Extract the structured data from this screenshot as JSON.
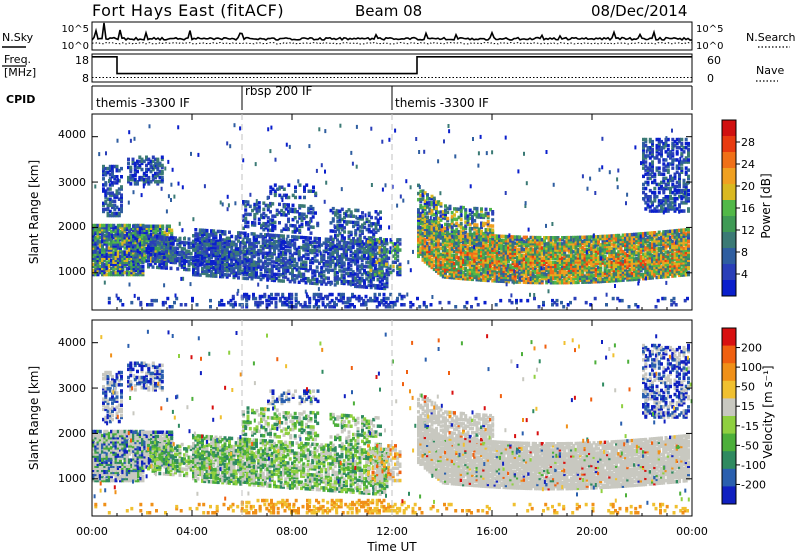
{
  "header": {
    "title": "Fort Hays East (fitACF)",
    "beam": "Beam 08",
    "date": "08/Dec/2014"
  },
  "chart_data": [
    {
      "type": "line",
      "name": "noise",
      "left_label": "N.Sky",
      "right_label": "N.Search",
      "ytick_labels_left": [
        "10^5",
        "10^0"
      ],
      "ytick_labels_right": [
        "10^5",
        "10^0"
      ]
    },
    {
      "type": "line",
      "name": "frequency",
      "left_label_line1": "Freq.",
      "left_label_line2": "[MHz]",
      "right_label": "Nave",
      "ytick_labels_left": [
        "18",
        "8"
      ],
      "ytick_labels_right": [
        "60",
        "0"
      ],
      "freq_steps": [
        [
          0,
          17
        ],
        [
          1.0,
          11
        ],
        [
          13.0,
          17
        ],
        [
          24,
          17
        ]
      ],
      "nave_level": 0.4
    },
    {
      "type": "table",
      "name": "cpid",
      "label": "CPID",
      "segments": [
        {
          "start": 0,
          "label": "themis -3300 IF"
        },
        {
          "start": 6,
          "label": "rbsp 200 IF"
        },
        {
          "start": 12,
          "label": "themis -3300 IF"
        }
      ]
    },
    {
      "type": "heatmap",
      "name": "power",
      "ylabel": "Slant Range [km]",
      "ytick_labels": [
        "1000",
        "2000",
        "3000",
        "4000"
      ],
      "yticks": [
        1000,
        2000,
        3000,
        4000
      ],
      "ylim": [
        180,
        4500
      ],
      "xlim": [
        0,
        24
      ],
      "colorbar_label": "Power [dB]",
      "colorbar_ticks": [
        "28",
        "24",
        "20",
        "16",
        "12",
        "8",
        "4"
      ],
      "colors": [
        "#0a1fcc",
        "#2a3fb8",
        "#2f5ea0",
        "#3b7a75",
        "#3f9a55",
        "#52b848",
        "#d9b820",
        "#f0a020",
        "#f07018",
        "#e83a10",
        "#d01010"
      ]
    },
    {
      "type": "heatmap",
      "name": "velocity",
      "ylabel": "Slant Range [km]",
      "ytick_labels": [
        "1000",
        "2000",
        "3000",
        "4000"
      ],
      "yticks": [
        1000,
        2000,
        3000,
        4000
      ],
      "ylim": [
        180,
        4500
      ],
      "xlim": [
        0,
        24
      ],
      "colorbar_label": "Velocity [m s⁻¹]",
      "colorbar_ticks": [
        "200",
        "100",
        "50",
        "15",
        "-15",
        "-50",
        "-100",
        "-200"
      ],
      "colors": [
        "#1020c0",
        "#2a5fae",
        "#2f8a60",
        "#4caf3a",
        "#8fd040",
        "#c8c8c0",
        "#f0c030",
        "#f09018",
        "#f06010",
        "#d81010"
      ]
    }
  ],
  "xaxis": {
    "xlabel": "Time UT",
    "ticks": [
      0,
      4,
      8,
      12,
      16,
      20,
      24
    ],
    "tick_labels": [
      "00:00",
      "04:00",
      "08:00",
      "12:00",
      "16:00",
      "20:00",
      "00:00"
    ]
  }
}
